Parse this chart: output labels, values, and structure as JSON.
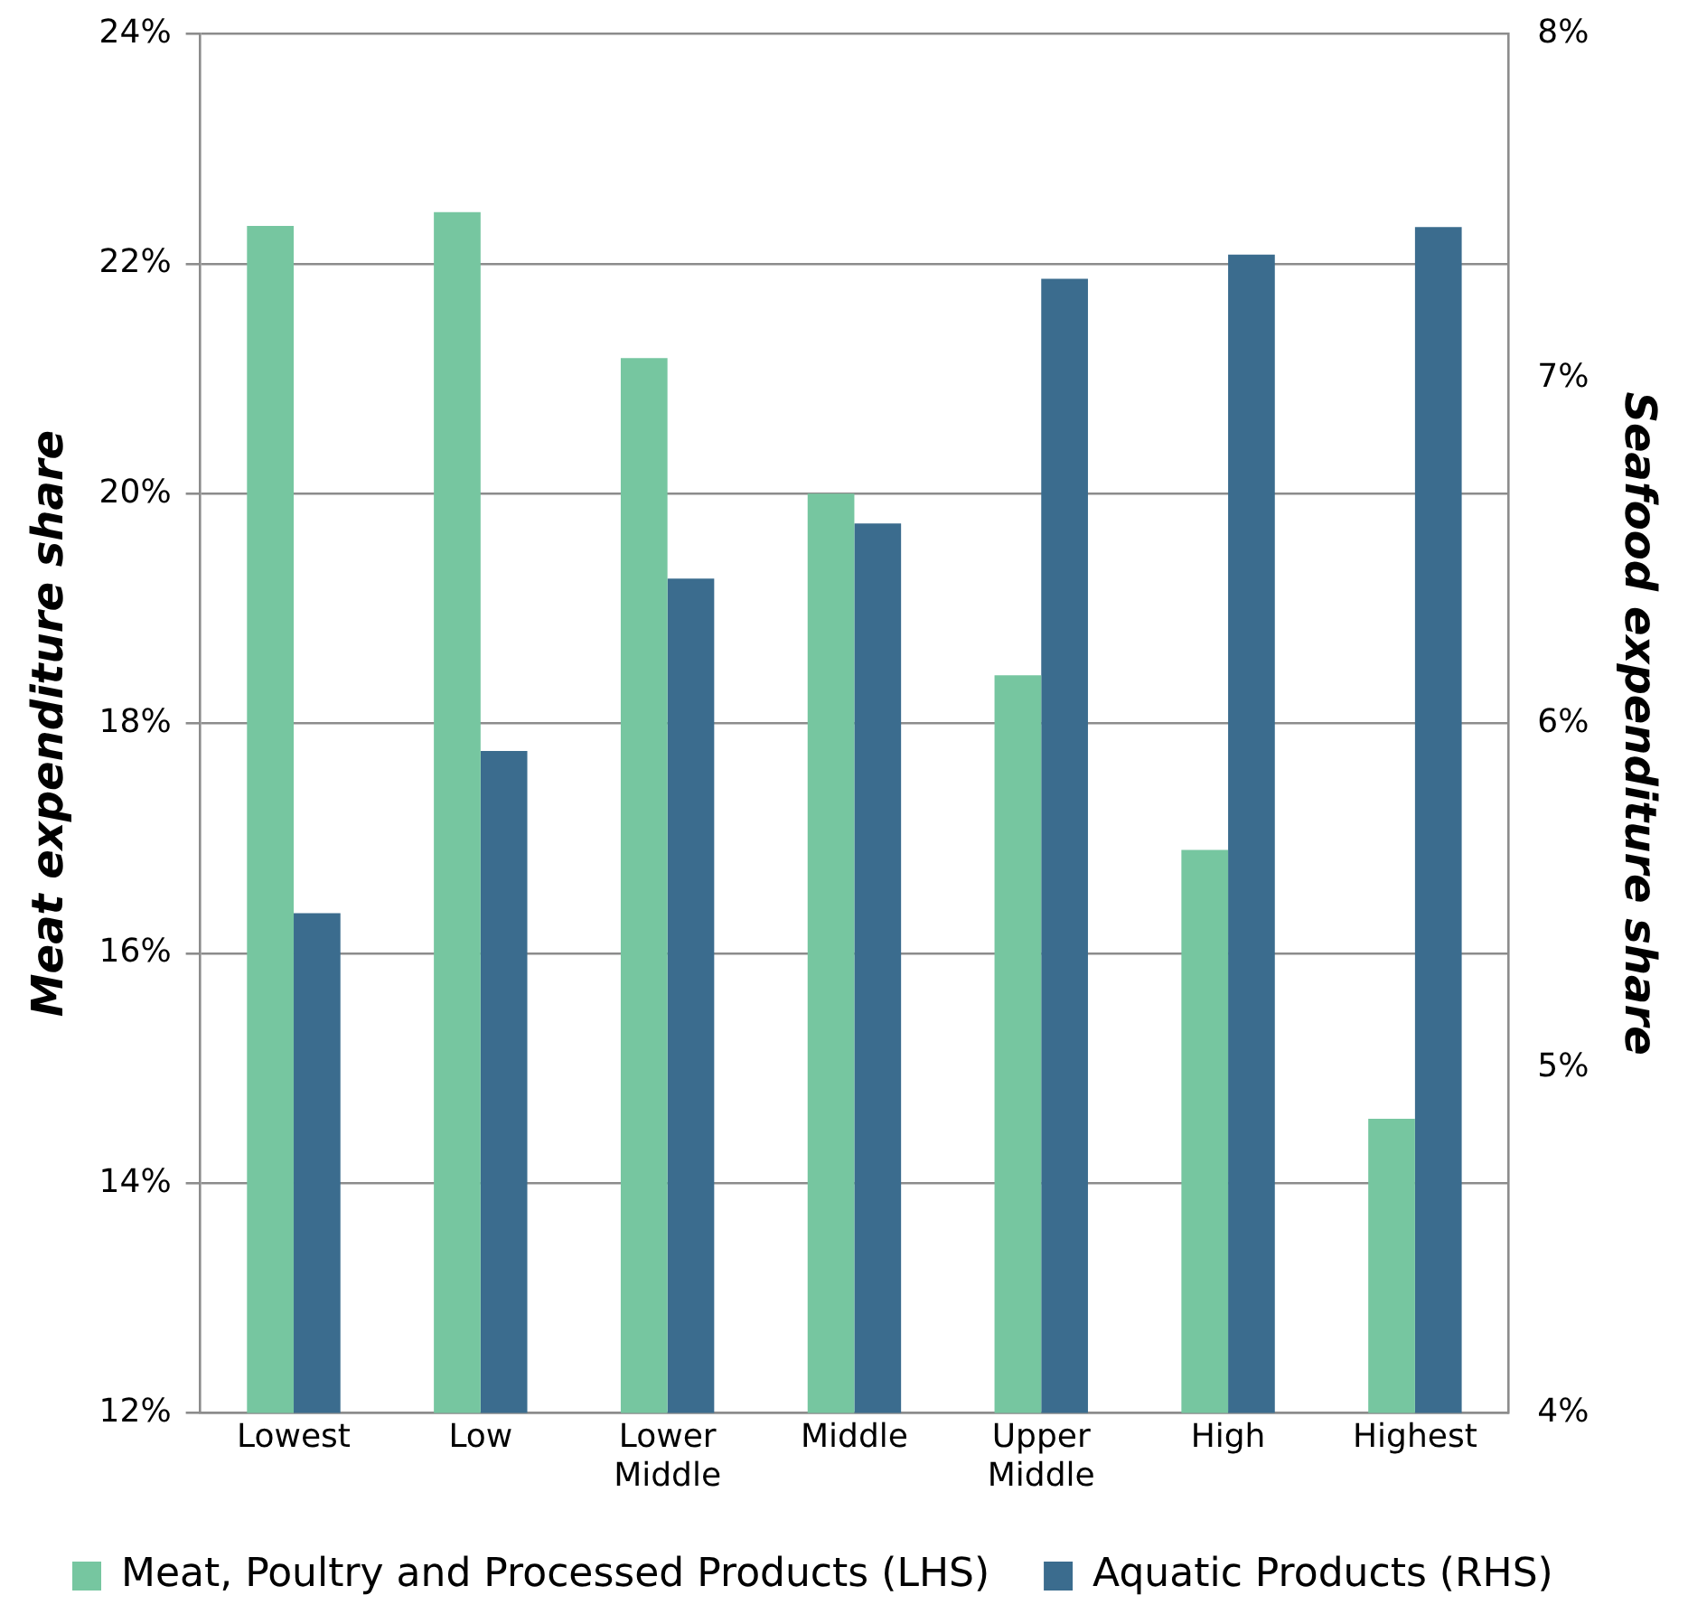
{
  "chart_data": {
    "type": "bar",
    "ylabel": "Meat expenditure share",
    "y2label": "Seafood expenditure share",
    "categories": [
      "Lowest",
      "Low",
      "Lower Middle",
      "Middle",
      "Upper Middle",
      "High",
      "Highest"
    ],
    "series": [
      {
        "name": "Meat, Poultry and Processed Products (LHS)",
        "color": "#76c6a0",
        "values": [
          22.33,
          22.45,
          21.18,
          20.0,
          18.42,
          16.9,
          14.56
        ]
      },
      {
        "name": "Aquatic Products (RHS)",
        "color": "#3b6c8e",
        "axis": "y2",
        "values": [
          5.45,
          5.92,
          6.42,
          6.58,
          7.29,
          7.36,
          7.44
        ]
      }
    ],
    "ylim": [
      12,
      24
    ],
    "yticks": [
      {
        "value": 12,
        "label": "12%"
      },
      {
        "value": 14,
        "label": "14%"
      },
      {
        "value": 16,
        "label": "16%"
      },
      {
        "value": 18,
        "label": "18%"
      },
      {
        "value": 20,
        "label": "20%"
      },
      {
        "value": 22,
        "label": "22%"
      },
      {
        "value": 24,
        "label": "24%"
      }
    ],
    "y2lim": [
      4,
      8
    ],
    "y2ticks": [
      {
        "value": 4,
        "label": "4%"
      },
      {
        "value": 5,
        "label": "5%"
      },
      {
        "value": 6,
        "label": "6%"
      },
      {
        "value": 7,
        "label": "7%"
      },
      {
        "value": 8,
        "label": "8%"
      }
    ],
    "grid": "y",
    "legend": "bottom"
  }
}
